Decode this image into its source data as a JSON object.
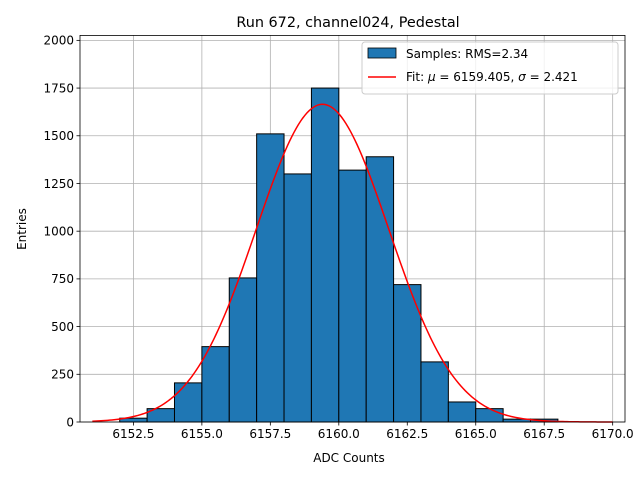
{
  "chart_data": {
    "type": "bar",
    "title": "Run 672, channel024, Pedestal",
    "xlabel": "ADC Counts",
    "ylabel": "Entries",
    "xlim": [
      6150.55,
      6170.45
    ],
    "ylim": [
      0,
      2026
    ],
    "grid": true,
    "legend_position": "upper right",
    "x_ticks": [
      6152.5,
      6155.0,
      6157.5,
      6160.0,
      6162.5,
      6165.0,
      6167.5,
      6170.0
    ],
    "x_tick_labels": [
      "6152.5",
      "6155.0",
      "6157.5",
      "6160.0",
      "6162.5",
      "6165.0",
      "6167.5",
      "6170.0"
    ],
    "y_ticks": [
      0,
      250,
      500,
      750,
      1000,
      1250,
      1500,
      1750,
      2000
    ],
    "y_tick_labels": [
      "0",
      "250",
      "500",
      "750",
      "1000",
      "1250",
      "1500",
      "1750",
      "2000"
    ],
    "histogram": {
      "name": "Samples: RMS=2.34",
      "color": "#1f77b4",
      "edge_color": "#000000",
      "bins": [
        {
          "left": 6152.0,
          "right": 6153.0,
          "count": 20
        },
        {
          "left": 6153.0,
          "right": 6154.0,
          "count": 70
        },
        {
          "left": 6154.0,
          "right": 6155.0,
          "count": 205
        },
        {
          "left": 6155.0,
          "right": 6156.0,
          "count": 395
        },
        {
          "left": 6156.0,
          "right": 6157.0,
          "count": 755
        },
        {
          "left": 6157.0,
          "right": 6158.0,
          "count": 1510
        },
        {
          "left": 6158.0,
          "right": 6159.0,
          "count": 1300
        },
        {
          "left": 6159.0,
          "right": 6160.0,
          "count": 1750
        },
        {
          "left": 6160.0,
          "right": 6161.0,
          "count": 1320
        },
        {
          "left": 6161.0,
          "right": 6162.0,
          "count": 1390
        },
        {
          "left": 6162.0,
          "right": 6163.0,
          "count": 720
        },
        {
          "left": 6163.0,
          "right": 6164.0,
          "count": 315
        },
        {
          "left": 6164.0,
          "right": 6165.0,
          "count": 105
        },
        {
          "left": 6165.0,
          "right": 6166.0,
          "count": 70
        },
        {
          "left": 6166.0,
          "right": 6167.0,
          "count": 15
        },
        {
          "left": 6167.0,
          "right": 6168.0,
          "count": 15
        }
      ]
    },
    "fit": {
      "name_prefix": "Fit: ",
      "mu_symbol": "μ",
      "mu_text": " = 6159.405, ",
      "sigma_symbol": "σ",
      "sigma_text": " = 2.421",
      "color": "#ff0000",
      "mu": 6159.405,
      "sigma": 2.421,
      "amplitude": 1665,
      "x_range": [
        6151.0,
        6170.0
      ]
    }
  }
}
